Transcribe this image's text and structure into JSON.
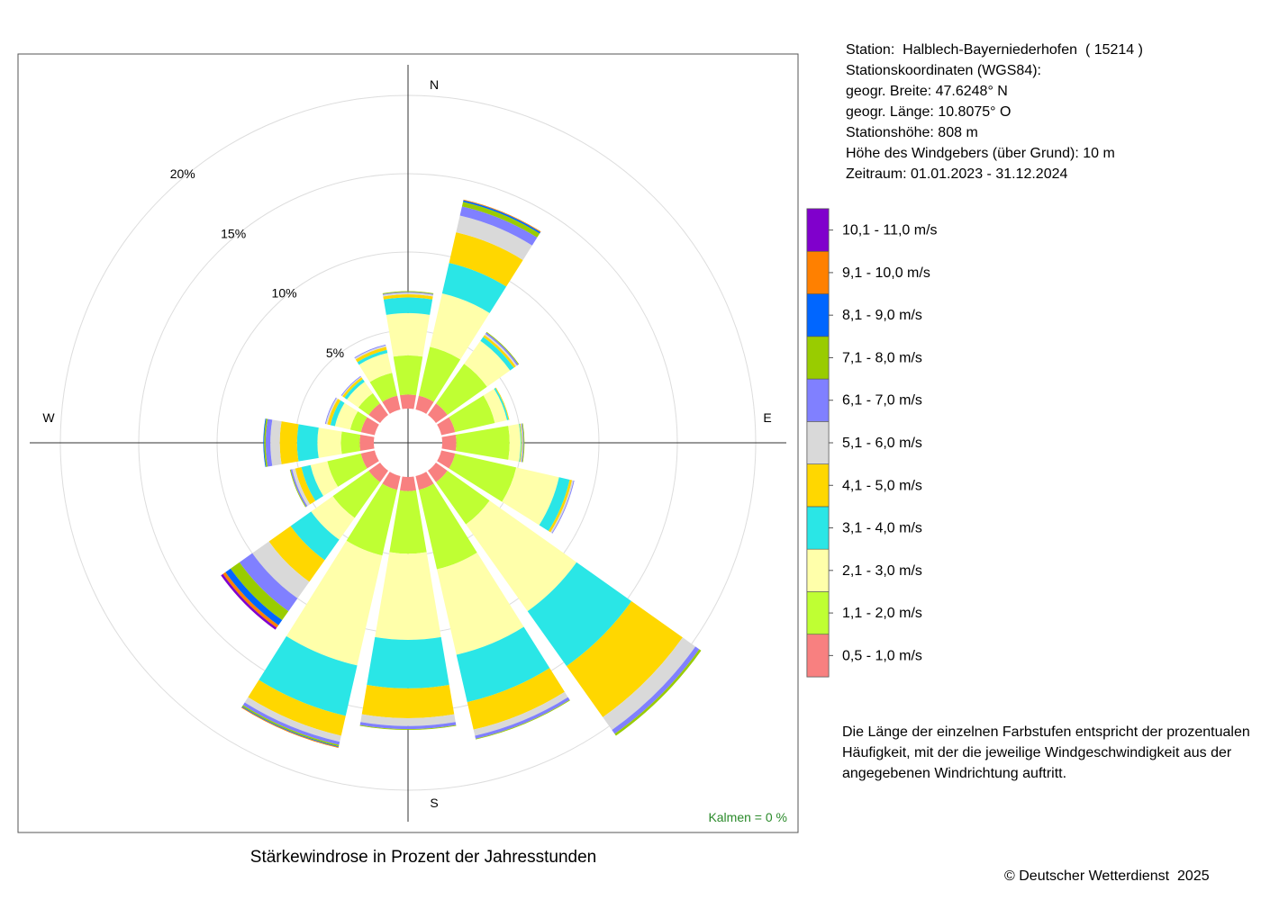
{
  "station": {
    "line1": "Station:  Halblech-Bayerniederhofen  ( 15214 )",
    "line2": "Stationskoordinaten (WGS84):",
    "line3": "geogr. Breite: 47.6248° N",
    "line4": "geogr. Länge: 10.8075° O",
    "line5": "Stationshöhe: 808 m",
    "line6": "Höhe des Windgebers (über Grund): 10 m",
    "line7": "Zeitraum: 01.01.2023 - 31.12.2024"
  },
  "note": "Die Länge der einzelnen Farbstufen entspricht der prozentualen Häufigkeit, mit der die jeweilige Windgeschwindigkeit aus der angegebenen Windrichtung auftritt.",
  "title": "Stärkewindrose in Prozent der Jahresstunden",
  "copyright": "© Deutscher Wetterdienst  2025",
  "calm_label": "Kalmen  =  0 %",
  "chart_data": {
    "type": "wind-rose",
    "title": "Stärkewindrose in Prozent der Jahresstunden",
    "directions": [
      "N",
      "NNE",
      "NE",
      "ENE",
      "E",
      "ESE",
      "SE",
      "SSE",
      "S",
      "SSW",
      "SW",
      "WSW",
      "W",
      "WNW",
      "NW",
      "NNW"
    ],
    "compass_labels": [
      "N",
      "E",
      "S",
      "W"
    ],
    "ring_labels": [
      "5%",
      "10%",
      "15%",
      "20%"
    ],
    "rings": [
      5,
      10,
      15,
      20
    ],
    "r_max": 23,
    "calm_percent": 0,
    "speed_classes": [
      {
        "label": "0,5 - 1,0 m/s",
        "color": "#f88080"
      },
      {
        "label": "1,1 - 2,0 m/s",
        "color": "#bfff33"
      },
      {
        "label": "2,1 - 3,0 m/s",
        "color": "#ffffaa"
      },
      {
        "label": "3,1 - 4,0 m/s",
        "color": "#2ae6e6"
      },
      {
        "label": "4,1 - 5,0 m/s",
        "color": "#ffd700"
      },
      {
        "label": "5,1 - 6,0 m/s",
        "color": "#d9d9d9"
      },
      {
        "label": "6,1 - 7,0 m/s",
        "color": "#8080ff"
      },
      {
        "label": "7,1 - 8,0 m/s",
        "color": "#99cc00"
      },
      {
        "label": "8,1 - 9,0 m/s",
        "color": "#0066ff"
      },
      {
        "label": "9,1 - 10,0 m/s",
        "color": "#ff8000"
      },
      {
        "label": "10,1 - 11,0 m/s",
        "color": "#8000cc"
      }
    ],
    "series": [
      {
        "direction": "N",
        "values": [
          0.9,
          2.5,
          2.7,
          1.0,
          0.2,
          0.1,
          0.05,
          0.05,
          0,
          0,
          0
        ]
      },
      {
        "direction": "NNE",
        "values": [
          0.9,
          3.2,
          3.5,
          2.0,
          2.0,
          1.1,
          0.6,
          0.3,
          0.1,
          0.05,
          0
        ]
      },
      {
        "direction": "NE",
        "values": [
          0.9,
          3.1,
          1.8,
          0.3,
          0.15,
          0.1,
          0.1,
          0.05,
          0,
          0,
          0
        ]
      },
      {
        "direction": "ENE",
        "values": [
          0.9,
          2.6,
          0.8,
          0.1,
          0.05,
          0,
          0,
          0,
          0,
          0,
          0
        ]
      },
      {
        "direction": "E",
        "values": [
          0.9,
          3.4,
          0.7,
          0.05,
          0.05,
          0.05,
          0.05,
          0.05,
          0,
          0,
          0
        ]
      },
      {
        "direction": "ESE",
        "values": [
          0.9,
          4.0,
          2.8,
          0.7,
          0.15,
          0.1,
          0.05,
          0,
          0,
          0,
          0
        ]
      },
      {
        "direction": "SE",
        "values": [
          0.9,
          3.3,
          6.8,
          4.3,
          4.0,
          1.0,
          0.3,
          0.15,
          0,
          0,
          0
        ]
      },
      {
        "direction": "SSE",
        "values": [
          0.9,
          5.2,
          5.6,
          3.1,
          1.8,
          0.4,
          0.2,
          0.05,
          0,
          0,
          0
        ]
      },
      {
        "direction": "S",
        "values": [
          0.9,
          4.0,
          5.5,
          3.1,
          1.9,
          0.5,
          0.2,
          0.05,
          0,
          0,
          0
        ]
      },
      {
        "direction": "SSW",
        "values": [
          0.9,
          4.3,
          7.2,
          3.3,
          1.3,
          0.4,
          0.2,
          0.1,
          0.05,
          0.05,
          0
        ]
      },
      {
        "direction": "SW",
        "values": [
          0.9,
          2.8,
          1.7,
          1.6,
          1.7,
          1.3,
          1.0,
          0.7,
          0.4,
          0.2,
          0.15
        ]
      },
      {
        "direction": "WSW",
        "values": [
          0.9,
          2.2,
          1.1,
          0.6,
          0.4,
          0.2,
          0.1,
          0.05,
          0,
          0,
          0
        ]
      },
      {
        "direction": "W",
        "values": [
          0.9,
          1.2,
          1.5,
          1.3,
          1.1,
          0.6,
          0.3,
          0.1,
          0.05,
          0,
          0
        ]
      },
      {
        "direction": "WNW",
        "values": [
          0.9,
          0.7,
          1.0,
          0.3,
          0.2,
          0.1,
          0.05,
          0,
          0,
          0,
          0
        ]
      },
      {
        "direction": "NW",
        "values": [
          0.9,
          0.8,
          0.9,
          0.2,
          0.15,
          0.05,
          0.05,
          0,
          0,
          0,
          0
        ]
      },
      {
        "direction": "NNW",
        "values": [
          0.9,
          1.5,
          1.3,
          0.2,
          0.2,
          0.1,
          0.05,
          0,
          0,
          0,
          0
        ]
      }
    ]
  }
}
